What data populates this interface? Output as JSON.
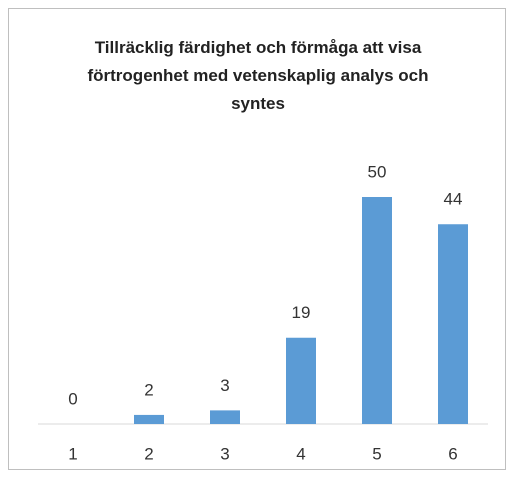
{
  "chart_data": {
    "type": "bar",
    "title": "Tillräcklig färdighet och förmåga att visa förtrogenhet med vetenskaplig analys och syntes",
    "categories": [
      "1",
      "2",
      "3",
      "4",
      "5",
      "6"
    ],
    "values": [
      0,
      2,
      3,
      19,
      50,
      44
    ],
    "color": "#5b9bd5"
  }
}
